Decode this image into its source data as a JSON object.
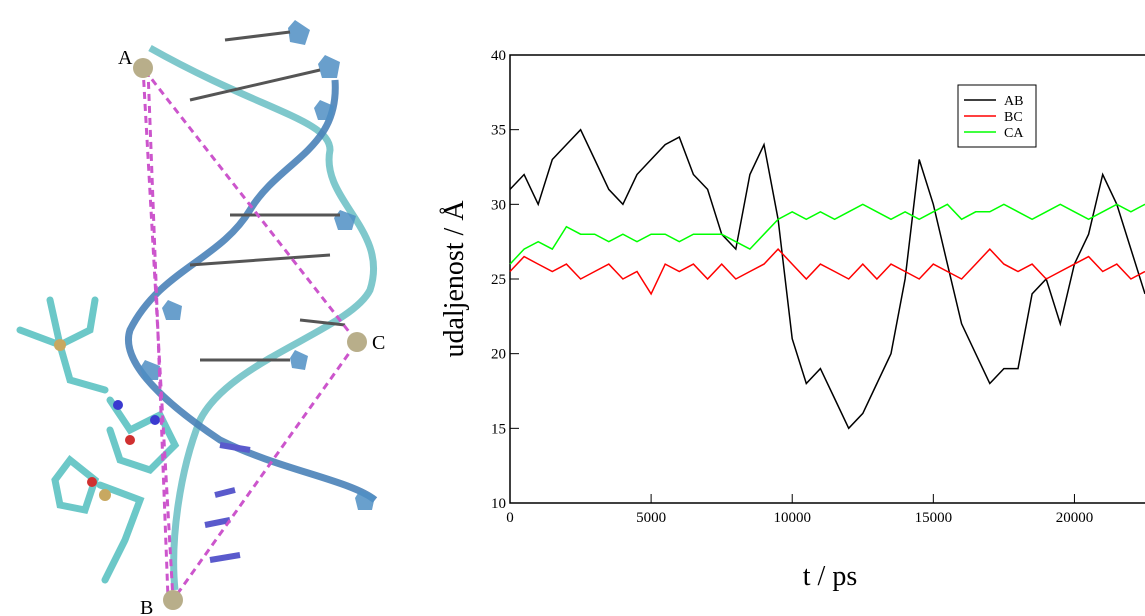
{
  "figure": {
    "labels": [
      "A",
      "B",
      "C"
    ]
  },
  "chart_data": {
    "type": "line",
    "xlabel": "t / ps",
    "ylabel": "udaljenost / Å",
    "x": [
      0,
      500,
      1000,
      1500,
      2000,
      2500,
      3000,
      3500,
      4000,
      4500,
      5000,
      5500,
      6000,
      6500,
      7000,
      7500,
      8000,
      8500,
      9000,
      9500,
      10000,
      10500,
      11000,
      11500,
      12000,
      12500,
      13000,
      13500,
      14000,
      14500,
      15000,
      15500,
      16000,
      16500,
      17000,
      17500,
      18000,
      18500,
      19000,
      19500,
      20000,
      20500,
      21000,
      21500,
      22000,
      22500
    ],
    "series": [
      {
        "name": "AB",
        "color": "#000000",
        "values": [
          31,
          32,
          30,
          33,
          34,
          35,
          33,
          31,
          30,
          32,
          33,
          34,
          34.5,
          32,
          31,
          28,
          27,
          32,
          34,
          29,
          21,
          18,
          19,
          17,
          15,
          16,
          18,
          20,
          25,
          33,
          30,
          26,
          22,
          20,
          18,
          19,
          19,
          24,
          25,
          22,
          26,
          28,
          32,
          30,
          27,
          24
        ]
      },
      {
        "name": "BC",
        "color": "#ff0000",
        "values": [
          25.5,
          26.5,
          26,
          25.5,
          26,
          25,
          25.5,
          26,
          25,
          25.5,
          24,
          26,
          25.5,
          26,
          25,
          26,
          25,
          25.5,
          26,
          27,
          26,
          25,
          26,
          25.5,
          25,
          26,
          25,
          26,
          25.5,
          25,
          26,
          25.5,
          25,
          26,
          27,
          26,
          25.5,
          26,
          25,
          25.5,
          26,
          26.5,
          25.5,
          26,
          25,
          25.5
        ]
      },
      {
        "name": "CA",
        "color": "#00ff00",
        "values": [
          26,
          27,
          27.5,
          27,
          28.5,
          28,
          28,
          27.5,
          28,
          27.5,
          28,
          28,
          27.5,
          28,
          28,
          28,
          27.5,
          27,
          28,
          29,
          29.5,
          29,
          29.5,
          29,
          29.5,
          30,
          29.5,
          29,
          29.5,
          29,
          29.5,
          30,
          29,
          29.5,
          29.5,
          30,
          29.5,
          29,
          29.5,
          30,
          29.5,
          29,
          29.5,
          30,
          29.5,
          30
        ]
      }
    ],
    "xlim": [
      0,
      22500
    ],
    "xticks": [
      0,
      5000,
      10000,
      15000,
      20000
    ],
    "ylim": [
      10,
      40
    ],
    "yticks": [
      10,
      15,
      20,
      25,
      30,
      35,
      40
    ],
    "legend": "top-right"
  }
}
